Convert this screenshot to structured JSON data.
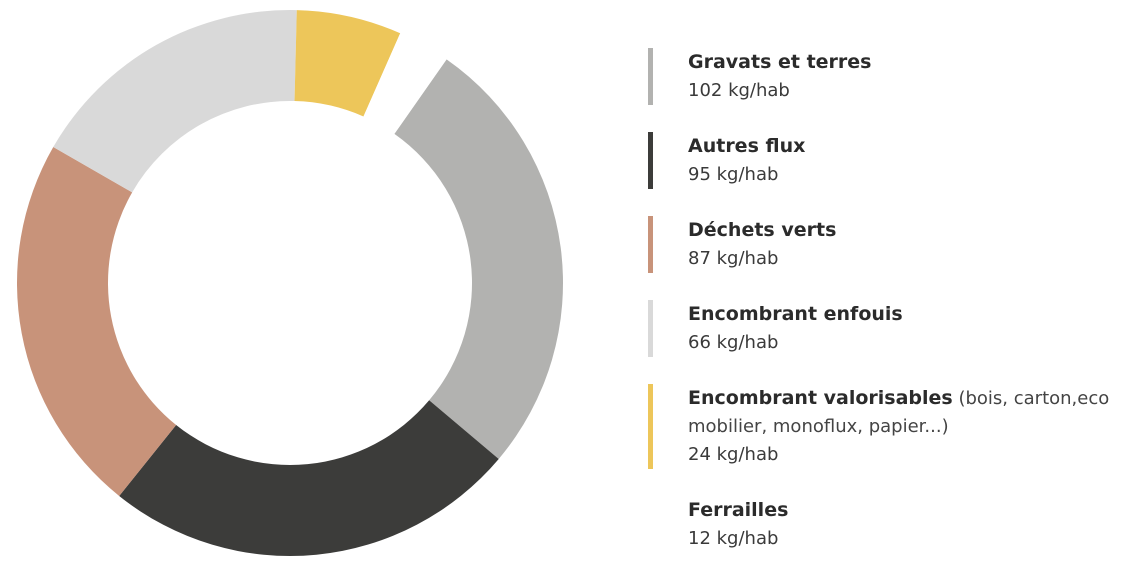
{
  "chart_data": {
    "type": "pie",
    "categories": [
      "Gravats et terres",
      "Autres flux",
      "Déchets verts",
      "Encombrant enfouis",
      "Encombrant valorisables",
      "Ferrailles"
    ],
    "values": [
      102,
      95,
      87,
      66,
      24,
      12
    ],
    "value_labels": [
      "102 kg/hab",
      "95 kg/hab",
      "87 kg/hab",
      "66 kg/hab",
      "24 kg/hab",
      "12 kg/hab"
    ],
    "colors": [
      "#b2b2b0",
      "#3c3c3a",
      "#c8937a",
      "#d9d9d9",
      "#edc65a",
      "#ffffff"
    ],
    "annotations": [
      {
        "category": "Encombrant valorisables",
        "text": "(bois, carton,eco mobilier, monoflux, papier...)"
      }
    ]
  }
}
